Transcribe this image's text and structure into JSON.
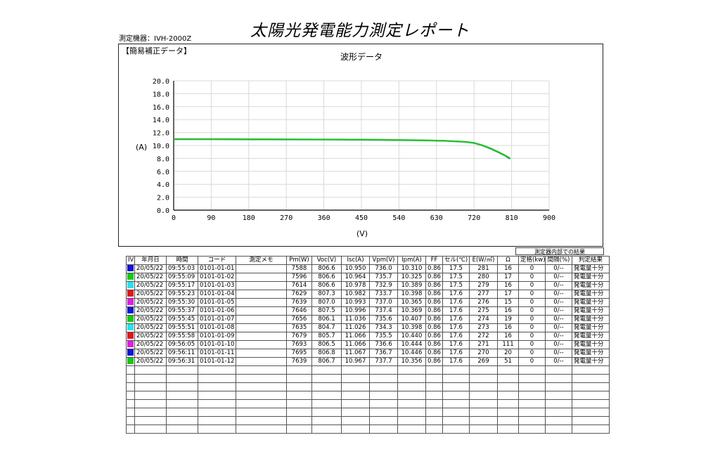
{
  "report": {
    "title": "太陽光発電能力測定レポート",
    "device": "測定機器：IVH-2000Z"
  },
  "chart_data": {
    "type": "line",
    "section_label": "【簡易補正データ】",
    "title": "波形データ",
    "xlabel": "(V)",
    "ylabel": "(A)",
    "xlim": [
      0,
      900
    ],
    "ylim": [
      0,
      20
    ],
    "xticks": [
      "0",
      "90",
      "180",
      "270",
      "360",
      "450",
      "540",
      "630",
      "720",
      "810",
      "900"
    ],
    "yticks": [
      "0.0",
      "2.0",
      "4.0",
      "6.0",
      "8.0",
      "10.0",
      "12.0",
      "14.0",
      "16.0",
      "18.0",
      "20.0"
    ],
    "grid": true,
    "series": [
      {
        "color": "#1a7fb0",
        "x": [
          0,
          100,
          200,
          300,
          400,
          500,
          600,
          650,
          700,
          720,
          740,
          760,
          780,
          795,
          806
        ],
        "y": [
          10.97,
          10.96,
          10.94,
          10.92,
          10.9,
          10.85,
          10.78,
          10.72,
          10.55,
          10.38,
          10.0,
          9.5,
          8.9,
          8.4,
          7.95
        ]
      },
      {
        "color": "#22c422",
        "x": [
          0,
          100,
          200,
          300,
          400,
          500,
          600,
          650,
          700,
          720,
          740,
          760,
          780,
          795,
          807
        ],
        "y": [
          11.0,
          10.99,
          10.97,
          10.95,
          10.92,
          10.88,
          10.8,
          10.73,
          10.56,
          10.4,
          10.03,
          9.55,
          8.95,
          8.45,
          8.0
        ]
      }
    ]
  },
  "note": "測定器内部での結果",
  "table": {
    "headers": [
      "IV",
      "年月日",
      "時間",
      "コード",
      "測定メモ",
      "Pm(W)",
      "Voc(V)",
      "Isc(A)",
      "Vpm(V)",
      "Ipm(A)",
      "FF",
      "セル(℃)",
      "E(W/㎡)",
      "Ω",
      "定格(kw)",
      "間隔(%)",
      "判定結果"
    ],
    "rows": [
      {
        "color": "#1414d4",
        "cells": [
          "20/05/22",
          "09:55:03",
          "0101-01-01",
          "",
          "7588",
          "806.6",
          "10.950",
          "736.0",
          "10.310",
          "0.86",
          "17.5",
          "281",
          "16",
          "0",
          "0/--",
          "発電量十分"
        ]
      },
      {
        "color": "#18c818",
        "cells": [
          "20/05/22",
          "09:55:09",
          "0101-01-02",
          "",
          "7596",
          "806.6",
          "10.964",
          "735.7",
          "10.325",
          "0.86",
          "17.5",
          "280",
          "17",
          "0",
          "0/--",
          "発電量十分"
        ]
      },
      {
        "color": "#30e0e8",
        "cells": [
          "20/05/22",
          "09:55:17",
          "0101-01-03",
          "",
          "7614",
          "806.6",
          "10.978",
          "732.9",
          "10.389",
          "0.86",
          "17.5",
          "279",
          "16",
          "0",
          "0/--",
          "発電量十分"
        ]
      },
      {
        "color": "#e01818",
        "cells": [
          "20/05/22",
          "09:55:23",
          "0101-01-04",
          "",
          "7629",
          "807.3",
          "10.982",
          "733.7",
          "10.398",
          "0.86",
          "17.6",
          "277",
          "17",
          "0",
          "0/--",
          "発電量十分"
        ]
      },
      {
        "color": "#e020e0",
        "cells": [
          "20/05/22",
          "09:55:30",
          "0101-01-05",
          "",
          "7639",
          "807.0",
          "10.993",
          "737.0",
          "10.365",
          "0.86",
          "17.6",
          "276",
          "15",
          "0",
          "0/--",
          "発電量十分"
        ]
      },
      {
        "color": "#1414d4",
        "cells": [
          "20/05/22",
          "09:55:37",
          "0101-01-06",
          "",
          "7646",
          "807.5",
          "10.996",
          "737.4",
          "10.369",
          "0.86",
          "17.6",
          "275",
          "16",
          "0",
          "0/--",
          "発電量十分"
        ]
      },
      {
        "color": "#18c818",
        "cells": [
          "20/05/22",
          "09:55:45",
          "0101-01-07",
          "",
          "7656",
          "806.1",
          "11.036",
          "735.6",
          "10.407",
          "0.86",
          "17.6",
          "274",
          "19",
          "0",
          "0/--",
          "発電量十分"
        ]
      },
      {
        "color": "#30e0e8",
        "cells": [
          "20/05/22",
          "09:55:51",
          "0101-01-08",
          "",
          "7635",
          "804.7",
          "11.026",
          "734.3",
          "10.398",
          "0.86",
          "17.6",
          "273",
          "16",
          "0",
          "0/--",
          "発電量十分"
        ]
      },
      {
        "color": "#e01818",
        "cells": [
          "20/05/22",
          "09:55:58",
          "0101-01-09",
          "",
          "7679",
          "805.7",
          "11.066",
          "735.5",
          "10.440",
          "0.86",
          "17.6",
          "272",
          "16",
          "0",
          "0/--",
          "発電量十分"
        ]
      },
      {
        "color": "#e020e0",
        "cells": [
          "20/05/22",
          "09:56:05",
          "0101-01-10",
          "",
          "7693",
          "806.5",
          "11.066",
          "736.6",
          "10.444",
          "0.86",
          "17.6",
          "271",
          "111",
          "0",
          "0/--",
          "発電量十分"
        ]
      },
      {
        "color": "#1414d4",
        "cells": [
          "20/05/22",
          "09:56:11",
          "0101-01-11",
          "",
          "7695",
          "806.8",
          "11.067",
          "736.7",
          "10.446",
          "0.86",
          "17.6",
          "270",
          "20",
          "0",
          "0/--",
          "発電量十分"
        ]
      },
      {
        "color": "#18c818",
        "cells": [
          "20/05/22",
          "09:56:31",
          "0101-01-12",
          "",
          "7639",
          "806.7",
          "10.967",
          "737.7",
          "10.356",
          "0.86",
          "17.6",
          "269",
          "51",
          "0",
          "0/--",
          "発電量十分"
        ]
      }
    ]
  }
}
